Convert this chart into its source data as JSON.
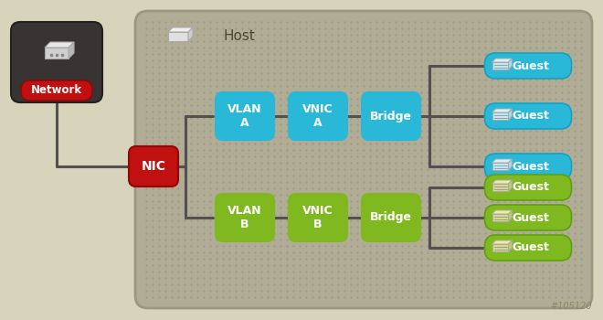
{
  "bg_color": "#d8d4bc",
  "host_box_color": "#b0ac96",
  "network_box_color": "#383434",
  "nic_color": "#c01010",
  "vlan_a_color": "#2ab8d8",
  "vlan_b_color": "#80b820",
  "guest_a_color": "#2ab8d8",
  "guest_b_color": "#80b820",
  "line_color": "#555050",
  "host_label": "Host",
  "network_label": "Network",
  "nic_label": "NIC",
  "vlan_a_label": "VLAN\nA",
  "vlan_b_label": "VLAN\nB",
  "vnic_a_label": "VNIC\nA",
  "vnic_b_label": "VNIC\nB",
  "bridge_a_label": "Bridge",
  "bridge_b_label": "Bridge",
  "guest_label": "Guest",
  "watermark": "#105120"
}
